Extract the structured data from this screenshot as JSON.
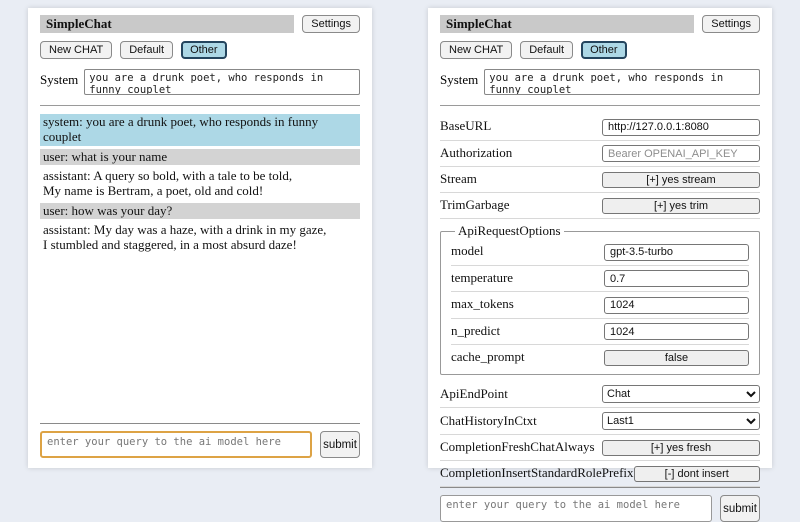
{
  "colors": {
    "page_bg": "#e9edf4",
    "titlebar_bg": "#c9c9c9",
    "system_msg_bg": "#add8e6",
    "user_msg_bg": "#d3d3d3",
    "selected_session_bg": "#add8e6",
    "query_focus_border": "#dda345"
  },
  "header": {
    "title": "SimpleChat",
    "settings_label": "Settings"
  },
  "sessions": {
    "new_chat": "New CHAT",
    "default": "Default",
    "other": "Other"
  },
  "system": {
    "label": "System",
    "value": "you are a drunk poet, who responds in funny couplet"
  },
  "chat": {
    "messages": [
      {
        "role": "system",
        "text": "system: you are a drunk poet, who responds in funny couplet"
      },
      {
        "role": "user",
        "text": "user: what is your name"
      },
      {
        "role": "assistant",
        "text": "assistant: A query so bold, with a tale to be told,\nMy name is Bertram, a poet, old and cold!"
      },
      {
        "role": "user",
        "text": "user: how was your day?"
      },
      {
        "role": "assistant",
        "text": "assistant: My day was a haze, with a drink in my gaze,\nI stumbled and staggered, in a most absurd daze!"
      }
    ]
  },
  "settings": {
    "rows_top": [
      {
        "label": "BaseURL",
        "value": "http://127.0.0.1:8080"
      },
      {
        "label": "Authorization",
        "placeholder": "Bearer OPENAI_API_KEY"
      },
      {
        "label": "Stream",
        "button": "[+] yes stream"
      },
      {
        "label": "TrimGarbage",
        "button": "[+] yes trim"
      }
    ],
    "api_request_options": {
      "legend": "ApiRequestOptions",
      "rows": [
        {
          "label": "model",
          "value": "gpt-3.5-turbo"
        },
        {
          "label": "temperature",
          "value": "0.7"
        },
        {
          "label": "max_tokens",
          "value": "1024"
        },
        {
          "label": "n_predict",
          "value": "1024"
        },
        {
          "label": "cache_prompt",
          "button": "false"
        }
      ]
    },
    "rows_bottom": [
      {
        "label": "ApiEndPoint",
        "select": "Chat"
      },
      {
        "label": "ChatHistoryInCtxt",
        "select": "Last1"
      },
      {
        "label": "CompletionFreshChatAlways",
        "button": "[+] yes fresh"
      },
      {
        "label": "CompletionInsertStandardRolePrefix",
        "button": "[-] dont insert"
      }
    ]
  },
  "query": {
    "placeholder": "enter your query to the ai model here",
    "submit_label": "submit"
  }
}
